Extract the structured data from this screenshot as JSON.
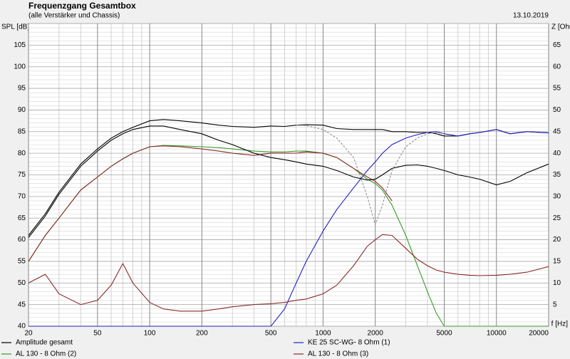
{
  "chart_data": {
    "type": "line",
    "title": "Frequenzgang Gesamtbox",
    "subtitle": "(alle Verstärker und Chassis)",
    "date": "13.10.2019",
    "y_label": "SPL [dB]",
    "y2_label": "Z [Ohm]",
    "x_label": "f [Hz]",
    "log_x": true,
    "grid": true,
    "x": [
      20,
      25,
      30,
      40,
      50,
      60,
      70,
      80,
      100,
      120,
      150,
      200,
      250,
      300,
      400,
      500,
      600,
      700,
      800,
      1000,
      1200,
      1500,
      1800,
      2000,
      2200,
      2500,
      3000,
      3500,
      4000,
      4500,
      5000,
      6000,
      7000,
      8000,
      10000,
      12000,
      15000,
      20000
    ],
    "xlim": [
      20,
      20000
    ],
    "xticks": [
      20,
      50,
      100,
      200,
      500,
      1000,
      2000,
      5000,
      10000,
      20000
    ],
    "xminor": [
      30,
      40,
      60,
      70,
      80,
      90,
      300,
      400,
      600,
      700,
      800,
      900,
      3000,
      4000,
      6000,
      7000,
      8000,
      9000
    ],
    "ylim": [
      40,
      110
    ],
    "yticks": [
      40,
      45,
      50,
      55,
      60,
      65,
      70,
      75,
      80,
      85,
      90,
      95,
      100,
      105
    ],
    "yminor_step": 1,
    "y2lim": [
      0,
      70
    ],
    "y2ticks": [
      5,
      10,
      15,
      20,
      25,
      30,
      35,
      40,
      45,
      50,
      55,
      60,
      65
    ],
    "series": [
      {
        "name": "Amplitude gesamt",
        "color": "#000000",
        "values": [
          61,
          66,
          71,
          77.5,
          81,
          83.5,
          85,
          86,
          87.5,
          87.8,
          87.5,
          87,
          86.5,
          86.2,
          86,
          86.3,
          86.2,
          86.5,
          86.6,
          86.5,
          85.7,
          85.5,
          85.5,
          85.5,
          85.5,
          85,
          85,
          84.8,
          84.8,
          84.5,
          84,
          84,
          84.5,
          84.8,
          85.5,
          84.5,
          85,
          84.7
        ]
      },
      {
        "name": "KE 25 SC-WG- 8 Ohm   (1)",
        "color": "#2020c0",
        "values": [
          40,
          40,
          40,
          40,
          40,
          40,
          40,
          40,
          40,
          40,
          40,
          40,
          40,
          40,
          40,
          40,
          44,
          50,
          55,
          62,
          67,
          72,
          76,
          78,
          80,
          82,
          83.5,
          84.3,
          84.8,
          85,
          84.5,
          84,
          84.5,
          84.8,
          85.5,
          84.5,
          85,
          84.7
        ]
      },
      {
        "name": "AL 130 - 8 Ohm (2)",
        "color": "#3a9a2a",
        "values": [
          55,
          61,
          65,
          71.5,
          74.5,
          77,
          78.7,
          80,
          81.5,
          81.8,
          81.7,
          81.5,
          81.3,
          81,
          80.5,
          80.3,
          80.3,
          80.5,
          80.5,
          80,
          79,
          76.5,
          74,
          73,
          71.5,
          68,
          61,
          54,
          48,
          43,
          40,
          40,
          40,
          40,
          40,
          40,
          40,
          40
        ]
      },
      {
        "name": "AL 130 - 8 Ohm (3)",
        "color": "#8a2a2a",
        "values": [
          55,
          61,
          65,
          71.5,
          74.5,
          77,
          78.7,
          80,
          81.5,
          81.7,
          81.5,
          81,
          80.5,
          80,
          79.5,
          80,
          80,
          80,
          80.3,
          80,
          79,
          76.5,
          74.5,
          73.5,
          72,
          69,
          null,
          null,
          null,
          null,
          null,
          null,
          null,
          null,
          null,
          null,
          null,
          null
        ]
      },
      {
        "color": "#000000",
        "values": [
          60.5,
          65.5,
          70.5,
          77,
          80.5,
          83,
          84.5,
          85.5,
          86.3,
          86.3,
          85.5,
          84.5,
          83,
          82,
          80,
          79,
          78.5,
          78,
          77.5,
          77,
          76,
          74.5,
          73.8,
          74,
          75,
          76.5,
          77.2,
          77.3,
          77,
          76.5,
          76,
          75,
          74.5,
          74,
          72.7,
          73.5,
          75.5,
          77.5
        ]
      },
      {
        "color": "#909090",
        "dashed": true,
        "values": [
          null,
          null,
          null,
          null,
          null,
          null,
          null,
          null,
          null,
          null,
          null,
          null,
          null,
          null,
          null,
          null,
          null,
          86.5,
          86.4,
          85.5,
          83.5,
          79,
          70,
          63.5,
          68,
          76,
          81.5,
          83.5,
          84.5,
          84.8,
          84.5,
          null,
          null,
          null,
          null,
          null,
          null,
          null
        ]
      },
      {
        "color": "#8a2a2a",
        "axis": "y2",
        "values": [
          10,
          12,
          7.5,
          5,
          6,
          9.5,
          14.5,
          10,
          5.5,
          4,
          3.5,
          3.5,
          4,
          4.5,
          5,
          5.2,
          5.5,
          6,
          6.3,
          7.5,
          9.5,
          14,
          18.5,
          20,
          21.2,
          21,
          18,
          15.5,
          14,
          13,
          12.5,
          12,
          11.8,
          11.7,
          11.8,
          12,
          12.5,
          13.8
        ]
      }
    ]
  }
}
